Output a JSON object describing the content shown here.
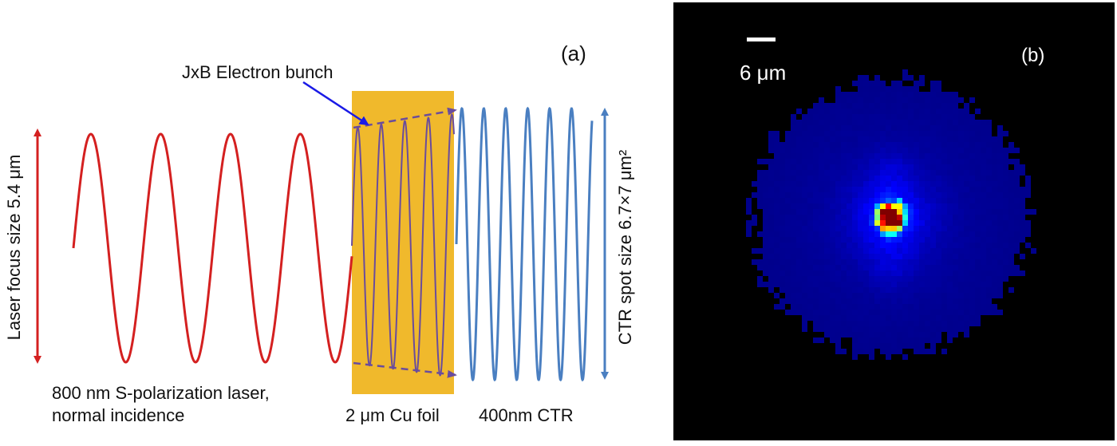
{
  "panel_a": {
    "label": "(a)",
    "electron_bunch_label": "JxB  Electron bunch",
    "laser_focus_label": "Laser focus size 5.4 μm",
    "laser_label_line1": "800 nm S-polarization laser,",
    "laser_label_line2": "normal incidence",
    "foil_label": "2 μm Cu foil",
    "ctr_label": "400nm CTR",
    "ctr_spot_label": "CTR spot size 6.7×7 μm²",
    "colors": {
      "laser": "#d42020",
      "foil": "#f0b92c",
      "bunch": "#6a4c9c",
      "ctr": "#4a7fc1",
      "pointer": "#1a1ae6"
    }
  },
  "panel_b": {
    "label": "(b)",
    "scale_bar_label": "6 μm",
    "colormap": "jet",
    "background": "#000000"
  }
}
